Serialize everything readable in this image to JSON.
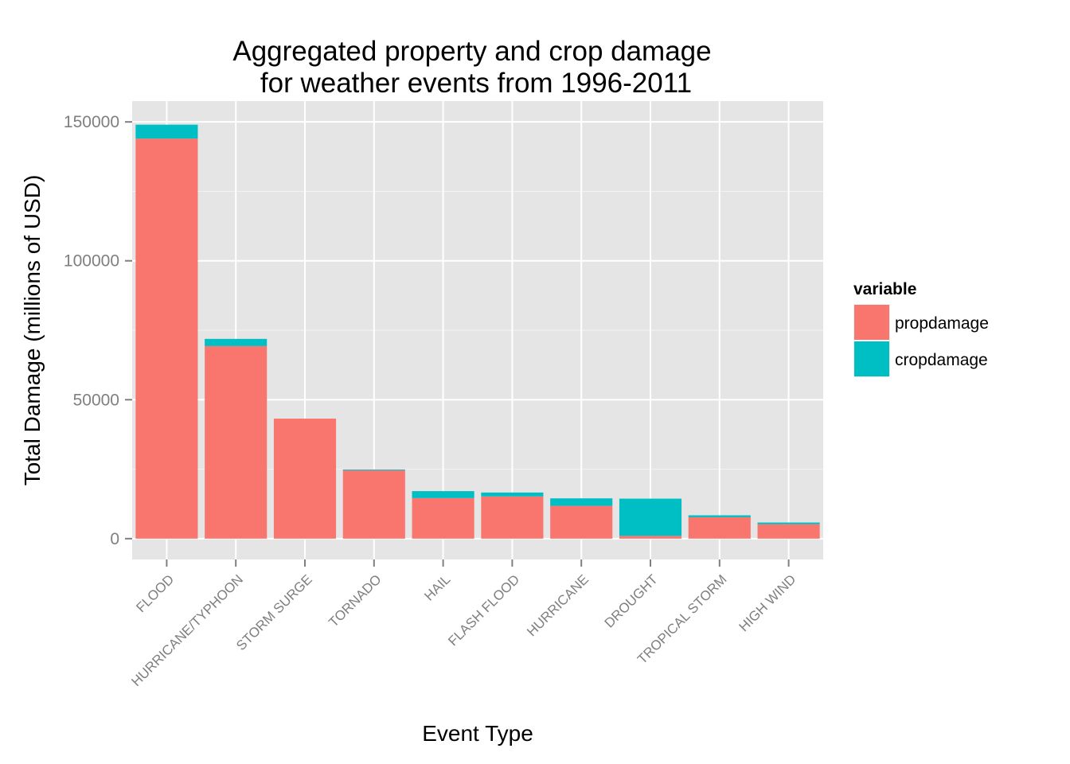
{
  "chart_data": {
    "type": "bar",
    "stacked": true,
    "title": [
      "Aggregated property and crop damage",
      "for weather events from 1996-2011"
    ],
    "xlabel": "Event Type",
    "ylabel": "Total Damage (millions of USD)",
    "ylim": [
      -7500,
      157500
    ],
    "yticks": [
      0,
      50000,
      100000,
      150000
    ],
    "ytick_labels": [
      "0",
      "50000",
      "100000",
      "150000"
    ],
    "grid": true,
    "legend_placement": "right",
    "categories": [
      "FLOOD",
      "HURRICANE/TYPHOON",
      "STORM SURGE",
      "TORNADO",
      "HAIL",
      "FLASH FLOOD",
      "HURRICANE",
      "DROUGHT",
      "TROPICAL STORM",
      "HIGH WIND"
    ],
    "series": [
      {
        "name": "propdamage",
        "color": "#F8766D",
        "values": [
          144000,
          69300,
          43200,
          24600,
          14600,
          15200,
          11800,
          1000,
          7700,
          5200
        ]
      },
      {
        "name": "cropdamage",
        "color": "#00BFC4",
        "values": [
          5000,
          2600,
          0,
          300,
          2500,
          1400,
          2700,
          13400,
          700,
          600
        ]
      }
    ],
    "legend_title": "variable"
  }
}
